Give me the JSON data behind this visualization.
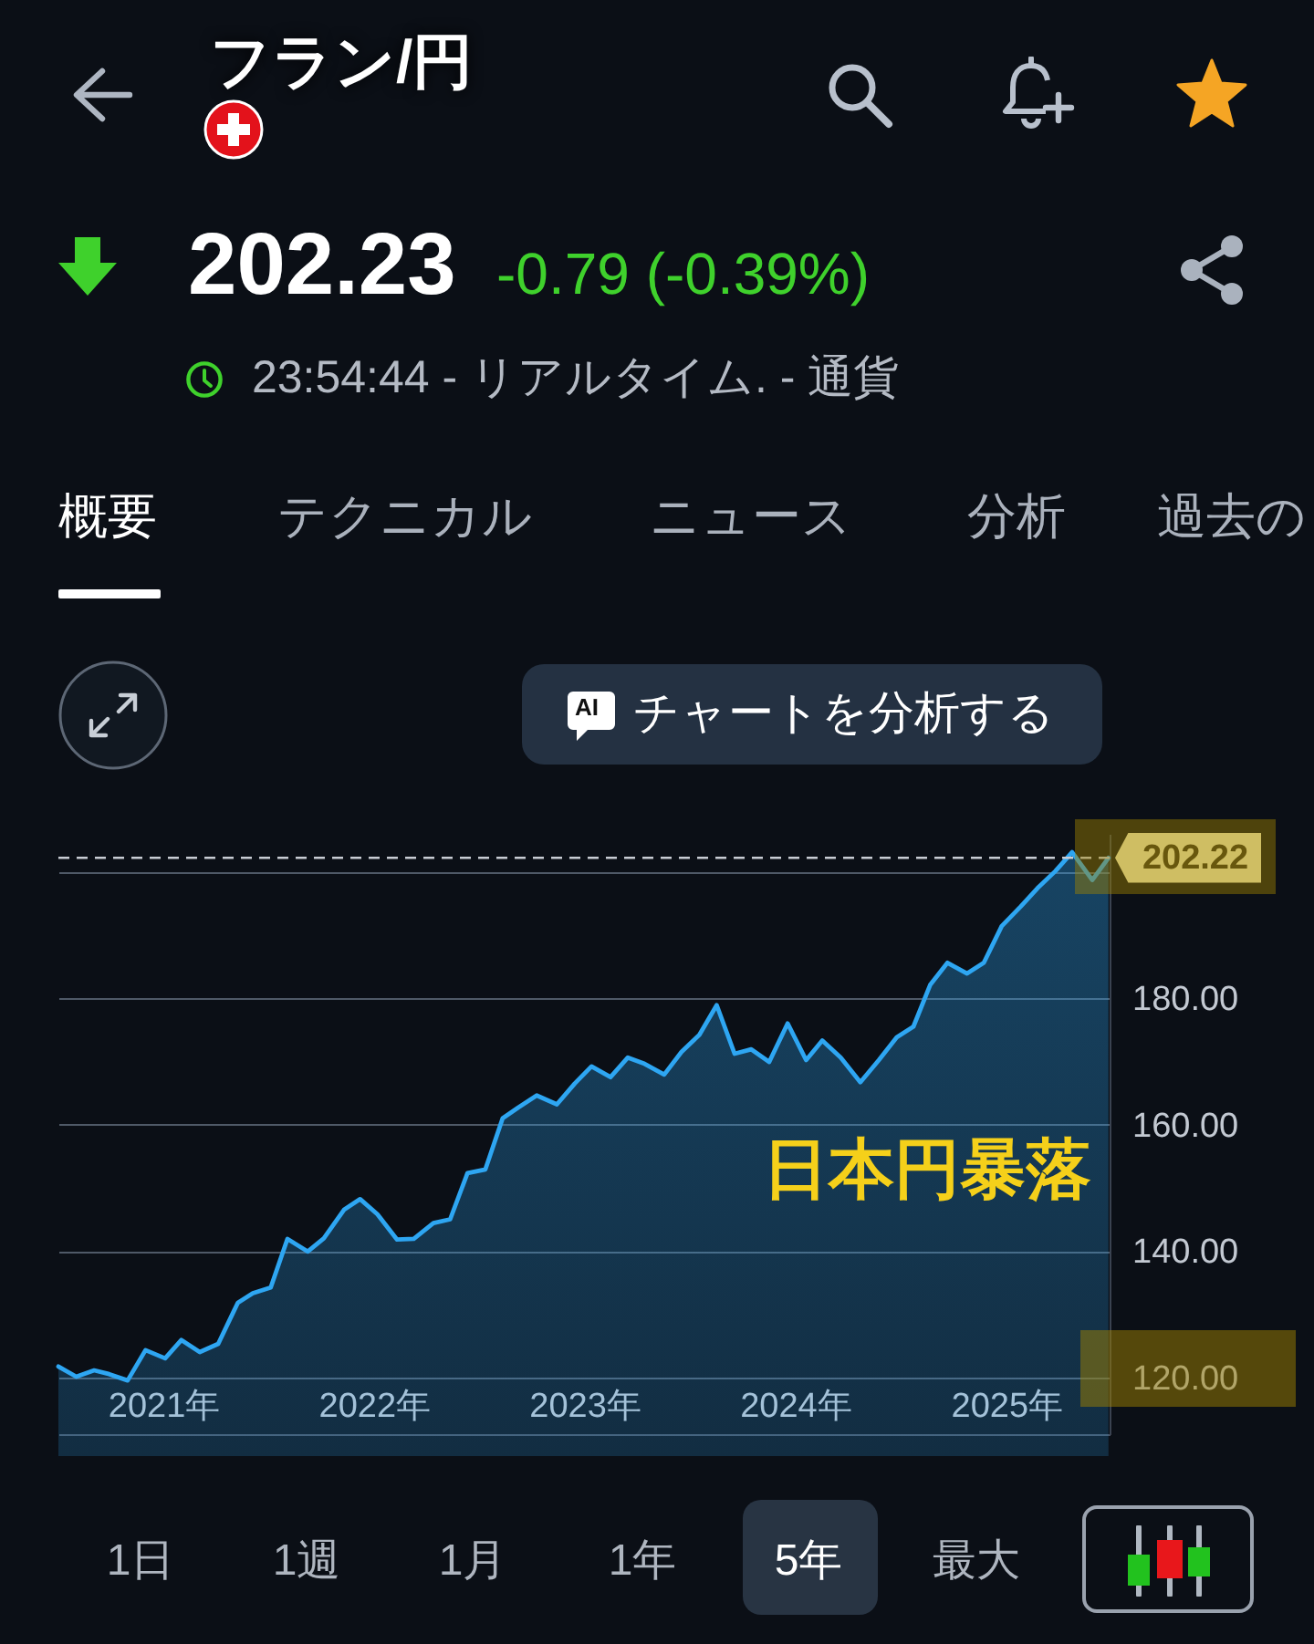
{
  "chart_data": {
    "type": "area",
    "title": "フラン/円",
    "x": [
      "2020-07-03",
      "2020-08-03",
      "2020-09-03",
      "2020-09-29",
      "2020-10-31",
      "2020-12-01",
      "2021-01-04",
      "2021-02-01",
      "2021-03-05",
      "2021-04-06",
      "2021-05-10",
      "2021-06-05",
      "2021-07-06",
      "2021-08-04",
      "2021-09-08",
      "2021-10-06",
      "2021-11-10",
      "2021-12-08",
      "2022-01-07",
      "2022-02-10",
      "2022-03-11",
      "2022-04-14",
      "2022-05-13",
      "2022-06-12",
      "2022-07-13",
      "2022-08-12",
      "2022-09-08",
      "2022-10-10",
      "2022-11-14",
      "2022-12-15",
      "2023-01-13",
      "2023-02-15",
      "2023-03-17",
      "2023-04-15",
      "2023-05-19",
      "2023-06-18",
      "2023-07-19",
      "2023-08-18",
      "2023-09-18",
      "2023-10-17",
      "2023-11-17",
      "2023-12-19",
      "2024-01-20",
      "2024-02-17",
      "2024-03-20",
      "2024-04-23",
      "2024-05-25",
      "2024-06-25",
      "2024-07-24",
      "2024-08-22",
      "2024-09-21",
      "2024-10-25",
      "2024-11-23",
      "2024-12-24",
      "2025-01-26",
      "2025-02-24",
      "2025-03-27",
      "2025-04-25",
      "2025-05-30",
      "2025-06-27"
    ],
    "values": [
      121.7,
      120.1,
      121.1,
      120.5,
      119.5,
      124.3,
      123.0,
      125.9,
      124.0,
      125.3,
      131.8,
      133.3,
      134.2,
      141.9,
      139.9,
      142.0,
      146.5,
      148.2,
      145.8,
      141.8,
      141.9,
      144.4,
      145.0,
      152.3,
      152.9,
      161.0,
      162.7,
      164.6,
      163.2,
      166.5,
      169.2,
      167.5,
      170.6,
      169.6,
      167.9,
      171.5,
      174.2,
      178.9,
      171.2,
      171.9,
      169.9,
      176.0,
      170.2,
      173.3,
      170.6,
      166.7,
      170.2,
      173.8,
      175.5,
      182.1,
      185.6,
      183.9,
      185.6,
      191.4,
      194.5,
      197.4,
      200.1,
      203.1,
      198.7,
      202.2
    ],
    "color": "#2ea6f2",
    "xlim": [
      "2020-07-03",
      "2025-06-29"
    ],
    "ylim": [
      111,
      206
    ],
    "xticks": [
      {
        "value": "2021",
        "label": "2021年"
      },
      {
        "value": "2022",
        "label": "2022年"
      },
      {
        "value": "2023",
        "label": "2023年"
      },
      {
        "value": "2024",
        "label": "2024年"
      },
      {
        "value": "2025",
        "label": "2025年"
      }
    ],
    "yticks": [
      {
        "value": 120,
        "label": "120.00"
      },
      {
        "value": 140,
        "label": "140.00"
      },
      {
        "value": 160,
        "label": "160.00"
      },
      {
        "value": 180,
        "label": "180.00"
      },
      {
        "value": 200,
        "label": null
      }
    ],
    "grid": "y",
    "ref_lines": [
      {
        "axis": "y",
        "value": 202.22,
        "label": "202.22",
        "line_style": "dashed",
        "color": "#c9cdd4"
      }
    ],
    "annotations": [
      "202.23",
      "-0.79 (-0.39%)",
      "23:54:44 - リアルタイム. - 通貨",
      "概要",
      "テクニカル",
      "ニュース",
      "分析",
      "過去の",
      "AI",
      "チャートを分析する",
      "日本円暴落",
      "1日",
      "1週",
      "1月",
      "1年",
      "5年",
      "最大"
    ]
  }
}
